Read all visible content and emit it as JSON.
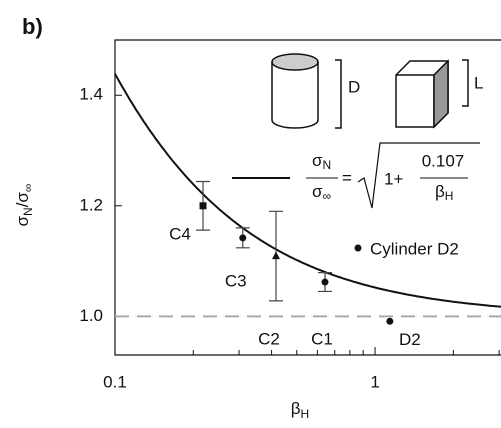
{
  "chart_data": {
    "type": "scatter",
    "panel_label": "b)",
    "xlabel": {
      "main": "β",
      "sub": "H"
    },
    "ylabel": {
      "num": "σ",
      "num_sub": "N",
      "den": "/σ",
      "den_sub": "∞"
    },
    "xscale": "log",
    "xlim": [
      0.1,
      3.05
    ],
    "ylim": [
      0.93,
      1.5
    ],
    "xticks": [
      0.1,
      1
    ],
    "xminor_ticks": [
      0.2,
      0.3,
      0.4,
      0.5,
      0.6,
      0.7,
      0.8,
      0.9,
      2,
      3
    ],
    "yticks": [
      {
        "value": 1,
        "label": "1.0"
      },
      1.2,
      1.4
    ],
    "reference_line": 1,
    "curve": {
      "coefficient": 0.107,
      "formula": {
        "lhs_num": "σ",
        "lhs_num_sub": "N",
        "lhs_den": "σ",
        "lhs_den_sub": "∞",
        "eq": "=",
        "one_plus": "1+",
        "rhs_den": "β",
        "rhs_den_sub": "H"
      }
    },
    "series": [
      {
        "names": [
          "C4",
          "C3",
          "C2",
          "C1",
          "D2"
        ],
        "markers": [
          "square",
          "circle",
          "triangle",
          "circle",
          "circle"
        ],
        "x": [
          0.218,
          0.31,
          0.416,
          0.642,
          1.14
        ],
        "values": [
          1.2,
          1.142,
          1.109,
          1.062,
          0.991
        ],
        "errors": [
          0.044,
          0.018,
          0.081,
          0.017,
          null
        ]
      }
    ],
    "legend": {
      "label": "Cylinder D2"
    },
    "icons": {
      "cylinder": "D",
      "cube": "L"
    }
  }
}
